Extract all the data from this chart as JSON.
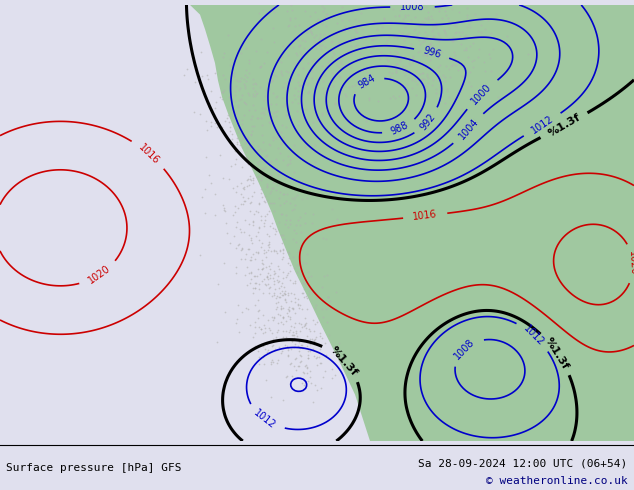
{
  "title_left": "Surface pressure [hPa] GFS",
  "title_right": "Sa 28-09-2024 12:00 UTC (06+54)",
  "copyright": "© weatheronline.co.uk",
  "ocean_color": "#e0e0ee",
  "land_green_color": "#a0c8a0",
  "land_green_light": "#b8d8b8",
  "gray_color": "#b0b0b0",
  "blue_contour_color": "#0000cc",
  "red_contour_color": "#cc0000",
  "black_contour_color": "#000000",
  "fig_width": 6.34,
  "fig_height": 4.9,
  "dpi": 100,
  "font_size_bottom": 8,
  "font_size_copyright": 8
}
